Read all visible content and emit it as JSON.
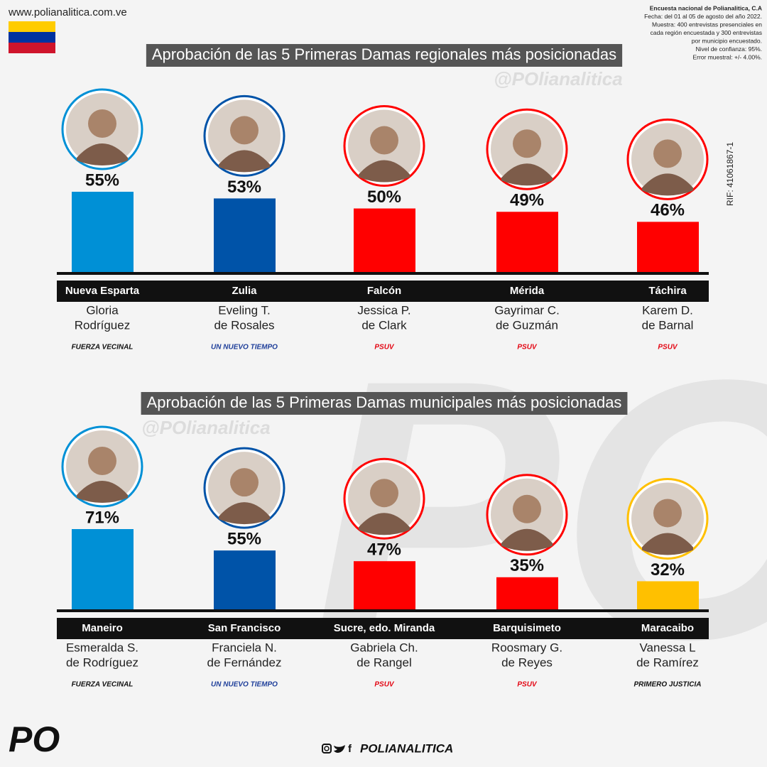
{
  "site": "www.polianalitica.com.ve",
  "survey_note": [
    "Encuesta nacional de Polianalitica, C.A",
    "Fecha: del 01 al 05 de agosto del año 2022.",
    "Muestra: 400 entrevistas presenciales en",
    "cada región encuestada y 300 entrevistas",
    "por municipio encuestado.",
    "Nivel de confianza: 95%.",
    "Error muestral: +/- 4.00%."
  ],
  "rif": "RIF: 41061867-1",
  "background_logo": "PO",
  "chart_data": [
    {
      "type": "bar",
      "title": "Aprobación de las 5 Primeras Damas regionales más posicionadas",
      "watermark": "@POlianalitica",
      "categories": [
        "Nueva Esparta",
        "Zulia",
        "Falcón",
        "Mérida",
        "Táchira"
      ],
      "names": [
        [
          "Gloria",
          "Rodríguez"
        ],
        [
          "Eveling T.",
          "de Rosales"
        ],
        [
          "Jessica P.",
          "de Clark"
        ],
        [
          "Gayrimar C.",
          "de Guzmán"
        ],
        [
          "Karem D.",
          "de Barnal"
        ]
      ],
      "parties": [
        "FUERZA VECINAL",
        "UN NUEVO TIEMPO",
        "PSUV",
        "PSUV",
        "PSUV"
      ],
      "party_colors": [
        "#111111",
        "#1f3f9a",
        "#e30613",
        "#e30613",
        "#e30613"
      ],
      "values": [
        55,
        53,
        50,
        49,
        46
      ],
      "value_labels": [
        "55%",
        "53%",
        "50%",
        "49%",
        "46%"
      ],
      "colors": [
        "#0090d6",
        "#0053a8",
        "#ff0000",
        "#ff0000",
        "#ff0000"
      ],
      "ylim": [
        31,
        55
      ]
    },
    {
      "type": "bar",
      "title": "Aprobación de las 5 Primeras Damas municipales más posicionadas",
      "watermark": "@POlianalitica",
      "categories": [
        "Maneiro",
        "San Francisco",
        "Sucre, edo. Miranda",
        "Barquisimeto",
        "Maracaibo"
      ],
      "names": [
        [
          "Esmeralda S.",
          "de Rodríguez"
        ],
        [
          "Franciela N.",
          "de Fernández"
        ],
        [
          "Gabriela Ch.",
          "de Rangel"
        ],
        [
          "Roosmary G.",
          "de Reyes"
        ],
        [
          "Vanessa L",
          "de Ramírez"
        ]
      ],
      "parties": [
        "FUERZA VECINAL",
        "UN NUEVO TIEMPO",
        "PSUV",
        "PSUV",
        "PRIMERO JUSTICIA"
      ],
      "party_colors": [
        "#111111",
        "#1f3f9a",
        "#e30613",
        "#e30613",
        "#111111"
      ],
      "values": [
        71,
        55,
        47,
        35,
        32
      ],
      "value_labels": [
        "71%",
        "55%",
        "47%",
        "35%",
        "32%"
      ],
      "colors": [
        "#0090d6",
        "#0053a8",
        "#ff0000",
        "#ff0000",
        "#ffc000"
      ],
      "ylim": [
        11,
        71
      ]
    }
  ],
  "footer": {
    "logo": "PO",
    "social": "POLIANALITICA"
  }
}
